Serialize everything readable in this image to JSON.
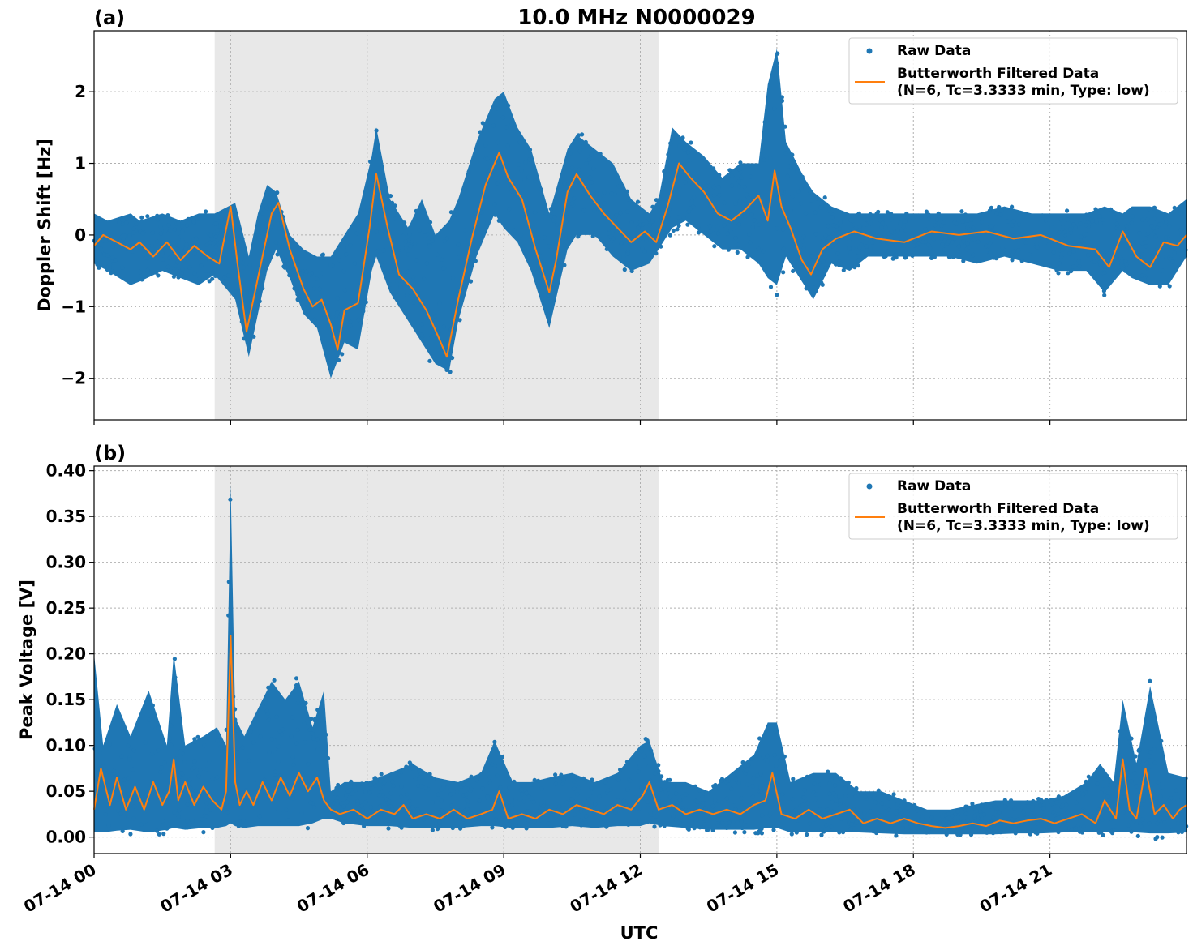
{
  "figure": {
    "title": "10.0 MHz N0000029",
    "xlabel": "UTC"
  },
  "colors": {
    "raw": "#1f77b4",
    "filtered": "#ff7f0e",
    "shade": "#e8e8e8",
    "grid": "#b0b0b0"
  },
  "chart_data": [
    {
      "type": "scatter",
      "panel_label": "(a)",
      "ylabel": "Doppler Shift [Hz]",
      "x_unit": "hours UTC on 07-14",
      "xlim": [
        0,
        24
      ],
      "ylim": [
        -2.58,
        2.85
      ],
      "xticks": [
        0,
        3,
        6,
        9,
        12,
        15,
        18,
        21
      ],
      "yticks": [
        -2,
        -1,
        0,
        1,
        2
      ],
      "ytick_labels": [
        "−2",
        "−1",
        "0",
        "1",
        "2"
      ],
      "shaded_x": [
        2.65,
        12.4
      ],
      "grid": true,
      "legend_position": "top-right",
      "legend": [
        "Raw Data",
        "Butterworth Filtered Data",
        "(N=6, Tc=3.3333 min, Type: low)"
      ],
      "series": [
        {
          "name": "Raw Data",
          "style": "band",
          "x": [
            0,
            0.3,
            0.8,
            1.0,
            1.5,
            1.9,
            2.3,
            2.65,
            3.1,
            3.4,
            3.6,
            3.8,
            4.0,
            4.3,
            4.6,
            4.9,
            5.2,
            5.5,
            5.8,
            6.1,
            6.2,
            6.5,
            6.9,
            7.2,
            7.5,
            7.8,
            8.0,
            8.4,
            8.8,
            9.0,
            9.3,
            9.6,
            10.0,
            10.4,
            10.6,
            11.0,
            11.4,
            11.8,
            12.2,
            12.4,
            12.7,
            13.0,
            13.4,
            13.8,
            14.2,
            14.6,
            14.8,
            15.0,
            15.2,
            15.6,
            15.8,
            16.2,
            16.6,
            17.0,
            17.6,
            18.2,
            18.8,
            19.4,
            20.0,
            20.6,
            21.2,
            21.8,
            22.2,
            22.6,
            22.8,
            23.2,
            23.6,
            24.0
          ],
          "lo": [
            -0.4,
            -0.5,
            -0.7,
            -0.65,
            -0.5,
            -0.6,
            -0.7,
            -0.55,
            -0.9,
            -1.7,
            -1.1,
            -0.5,
            -0.2,
            -0.6,
            -1.1,
            -1.3,
            -2.0,
            -1.5,
            -1.6,
            -0.5,
            -0.3,
            -0.8,
            -1.2,
            -1.5,
            -1.8,
            -1.9,
            -1.2,
            -0.3,
            0.3,
            0.1,
            -0.1,
            -0.5,
            -1.3,
            -0.2,
            0.0,
            0.0,
            -0.3,
            -0.5,
            -0.4,
            -0.2,
            0.1,
            0.2,
            0.0,
            -0.2,
            -0.2,
            -0.4,
            -0.6,
            -0.7,
            -0.3,
            -0.7,
            -0.9,
            -0.4,
            -0.5,
            -0.3,
            -0.3,
            -0.3,
            -0.3,
            -0.4,
            -0.3,
            -0.4,
            -0.5,
            -0.5,
            -0.8,
            -0.5,
            -0.6,
            -0.7,
            -0.7,
            -0.3
          ],
          "hi": [
            0.3,
            0.2,
            0.3,
            0.2,
            0.3,
            0.2,
            0.3,
            0.3,
            0.45,
            -0.3,
            0.3,
            0.7,
            0.6,
            0.0,
            -0.2,
            -0.3,
            -0.3,
            0.0,
            0.3,
            1.1,
            1.5,
            0.5,
            0.1,
            0.5,
            0.0,
            0.2,
            0.5,
            1.3,
            1.9,
            2.0,
            1.5,
            1.2,
            0.3,
            1.2,
            1.4,
            1.2,
            1.0,
            0.5,
            0.3,
            0.5,
            1.5,
            1.3,
            1.1,
            0.8,
            1.0,
            1.0,
            2.1,
            2.6,
            1.3,
            0.8,
            0.6,
            0.4,
            0.3,
            0.3,
            0.3,
            0.3,
            0.3,
            0.3,
            0.4,
            0.3,
            0.3,
            0.3,
            0.4,
            0.3,
            0.4,
            0.4,
            0.3,
            0.5
          ]
        },
        {
          "name": "Butterworth Filtered Data",
          "style": "line",
          "x": [
            0,
            0.2,
            0.5,
            0.8,
            1.0,
            1.3,
            1.6,
            1.9,
            2.2,
            2.5,
            2.75,
            3.0,
            3.15,
            3.35,
            3.6,
            3.9,
            4.05,
            4.3,
            4.6,
            4.8,
            5.0,
            5.2,
            5.35,
            5.5,
            5.8,
            6.05,
            6.2,
            6.45,
            6.7,
            7.0,
            7.3,
            7.55,
            7.75,
            8.0,
            8.3,
            8.6,
            8.9,
            9.1,
            9.4,
            9.7,
            10.0,
            10.15,
            10.4,
            10.6,
            10.9,
            11.2,
            11.5,
            11.8,
            12.1,
            12.35,
            12.6,
            12.85,
            13.1,
            13.4,
            13.7,
            14.0,
            14.3,
            14.6,
            14.8,
            14.95,
            15.1,
            15.3,
            15.55,
            15.75,
            16.0,
            16.3,
            16.7,
            17.2,
            17.8,
            18.4,
            19.0,
            19.6,
            20.2,
            20.8,
            21.4,
            22.0,
            22.3,
            22.6,
            22.9,
            23.2,
            23.5,
            23.8,
            24.0
          ],
          "y": [
            -0.15,
            0.0,
            -0.1,
            -0.2,
            -0.1,
            -0.3,
            -0.1,
            -0.35,
            -0.15,
            -0.3,
            -0.4,
            0.4,
            -0.4,
            -1.35,
            -0.6,
            0.3,
            0.45,
            -0.2,
            -0.75,
            -1.0,
            -0.9,
            -1.25,
            -1.6,
            -1.05,
            -0.95,
            0.1,
            0.85,
            0.1,
            -0.55,
            -0.75,
            -1.05,
            -1.4,
            -1.7,
            -0.9,
            -0.05,
            0.7,
            1.15,
            0.8,
            0.5,
            -0.2,
            -0.8,
            -0.35,
            0.6,
            0.85,
            0.55,
            0.3,
            0.1,
            -0.1,
            0.05,
            -0.1,
            0.4,
            1.0,
            0.8,
            0.6,
            0.3,
            0.2,
            0.35,
            0.55,
            0.2,
            0.9,
            0.4,
            0.1,
            -0.35,
            -0.55,
            -0.2,
            -0.05,
            0.05,
            -0.05,
            -0.1,
            0.05,
            0.0,
            0.05,
            -0.05,
            0.0,
            -0.15,
            -0.2,
            -0.45,
            0.05,
            -0.3,
            -0.45,
            -0.1,
            -0.15,
            0.0
          ]
        }
      ]
    },
    {
      "type": "scatter",
      "panel_label": "(b)",
      "ylabel": "Peak Voltage [V]",
      "x_unit": "hours UTC on 07-14",
      "xlim": [
        0,
        24
      ],
      "ylim": [
        -0.018,
        0.405
      ],
      "xticks": [
        0,
        3,
        6,
        9,
        12,
        15,
        18,
        21
      ],
      "yticks": [
        0.0,
        0.05,
        0.1,
        0.15,
        0.2,
        0.25,
        0.3,
        0.35,
        0.4
      ],
      "ytick_labels": [
        "0.00",
        "0.05",
        "0.10",
        "0.15",
        "0.20",
        "0.25",
        "0.30",
        "0.35",
        "0.40"
      ],
      "shaded_x": [
        2.65,
        12.4
      ],
      "grid": true,
      "legend_position": "top-right",
      "legend": [
        "Raw Data",
        "Butterworth Filtered Data",
        "(N=6, Tc=3.3333 min, Type: low)"
      ],
      "series": [
        {
          "name": "Raw Data",
          "style": "band",
          "x": [
            0,
            0.2,
            0.5,
            0.8,
            1.2,
            1.6,
            1.75,
            2.0,
            2.4,
            2.7,
            2.9,
            3.0,
            3.1,
            3.3,
            3.6,
            3.9,
            4.2,
            4.5,
            4.8,
            5.05,
            5.2,
            5.5,
            6.0,
            6.5,
            7.0,
            7.5,
            8.0,
            8.5,
            8.8,
            9.2,
            9.6,
            10.0,
            10.5,
            11.0,
            11.5,
            12.0,
            12.2,
            12.5,
            13.0,
            13.5,
            14.0,
            14.5,
            14.8,
            15.0,
            15.3,
            15.8,
            16.3,
            16.8,
            17.3,
            17.8,
            18.3,
            18.8,
            19.3,
            19.8,
            20.3,
            20.8,
            21.3,
            21.8,
            22.1,
            22.4,
            22.6,
            22.9,
            23.2,
            23.6,
            24.0
          ],
          "lo": [
            0.005,
            0.005,
            0.007,
            0.008,
            0.005,
            0.008,
            0.01,
            0.008,
            0.01,
            0.01,
            0.012,
            0.015,
            0.012,
            0.01,
            0.012,
            0.012,
            0.012,
            0.012,
            0.015,
            0.02,
            0.02,
            0.015,
            0.012,
            0.012,
            0.01,
            0.01,
            0.01,
            0.012,
            0.012,
            0.01,
            0.01,
            0.01,
            0.012,
            0.01,
            0.012,
            0.012,
            0.015,
            0.012,
            0.01,
            0.008,
            0.008,
            0.008,
            0.01,
            0.01,
            0.005,
            0.005,
            0.005,
            0.005,
            0.004,
            0.003,
            0.003,
            0.003,
            0.003,
            0.003,
            0.004,
            0.004,
            0.005,
            0.005,
            0.005,
            0.005,
            0.005,
            0.005,
            0.004,
            0.004,
            0.005
          ],
          "hi": [
            0.2,
            0.1,
            0.145,
            0.11,
            0.16,
            0.1,
            0.2,
            0.1,
            0.11,
            0.12,
            0.1,
            0.385,
            0.13,
            0.11,
            0.14,
            0.17,
            0.15,
            0.17,
            0.12,
            0.16,
            0.05,
            0.06,
            0.06,
            0.07,
            0.08,
            0.065,
            0.06,
            0.07,
            0.105,
            0.06,
            0.06,
            0.065,
            0.07,
            0.06,
            0.07,
            0.1,
            0.105,
            0.06,
            0.06,
            0.05,
            0.07,
            0.09,
            0.125,
            0.125,
            0.06,
            0.07,
            0.07,
            0.05,
            0.05,
            0.04,
            0.03,
            0.03,
            0.035,
            0.04,
            0.04,
            0.04,
            0.045,
            0.06,
            0.08,
            0.06,
            0.15,
            0.08,
            0.165,
            0.07,
            0.065
          ]
        },
        {
          "name": "Butterworth Filtered Data",
          "style": "line",
          "x": [
            0,
            0.15,
            0.35,
            0.5,
            0.7,
            0.9,
            1.1,
            1.3,
            1.5,
            1.65,
            1.75,
            1.85,
            2.0,
            2.2,
            2.4,
            2.6,
            2.8,
            2.9,
            3.0,
            3.1,
            3.2,
            3.35,
            3.5,
            3.7,
            3.9,
            4.1,
            4.3,
            4.5,
            4.7,
            4.9,
            5.05,
            5.2,
            5.4,
            5.7,
            6.0,
            6.3,
            6.6,
            6.8,
            7.0,
            7.3,
            7.6,
            7.9,
            8.2,
            8.5,
            8.75,
            8.9,
            9.1,
            9.4,
            9.7,
            10.0,
            10.3,
            10.6,
            10.9,
            11.2,
            11.5,
            11.8,
            12.05,
            12.2,
            12.4,
            12.7,
            13.0,
            13.3,
            13.6,
            13.9,
            14.2,
            14.5,
            14.75,
            14.9,
            15.1,
            15.4,
            15.7,
            16.0,
            16.3,
            16.6,
            16.9,
            17.2,
            17.5,
            17.8,
            18.1,
            18.4,
            18.7,
            19.0,
            19.3,
            19.6,
            19.9,
            20.2,
            20.5,
            20.8,
            21.1,
            21.4,
            21.7,
            22.0,
            22.2,
            22.45,
            22.6,
            22.75,
            22.9,
            23.1,
            23.3,
            23.5,
            23.7,
            23.85,
            24.0
          ],
          "y": [
            0.03,
            0.075,
            0.035,
            0.065,
            0.03,
            0.055,
            0.03,
            0.06,
            0.035,
            0.05,
            0.085,
            0.04,
            0.06,
            0.035,
            0.055,
            0.04,
            0.03,
            0.05,
            0.22,
            0.06,
            0.035,
            0.05,
            0.035,
            0.06,
            0.04,
            0.065,
            0.045,
            0.07,
            0.05,
            0.065,
            0.04,
            0.03,
            0.025,
            0.03,
            0.02,
            0.03,
            0.025,
            0.035,
            0.02,
            0.025,
            0.02,
            0.03,
            0.02,
            0.025,
            0.03,
            0.05,
            0.02,
            0.025,
            0.02,
            0.03,
            0.025,
            0.035,
            0.03,
            0.025,
            0.035,
            0.03,
            0.045,
            0.06,
            0.03,
            0.035,
            0.025,
            0.03,
            0.025,
            0.03,
            0.025,
            0.035,
            0.04,
            0.07,
            0.025,
            0.02,
            0.03,
            0.02,
            0.025,
            0.03,
            0.015,
            0.02,
            0.015,
            0.02,
            0.015,
            0.012,
            0.01,
            0.012,
            0.015,
            0.012,
            0.018,
            0.015,
            0.018,
            0.02,
            0.015,
            0.02,
            0.025,
            0.015,
            0.04,
            0.02,
            0.085,
            0.03,
            0.02,
            0.075,
            0.025,
            0.035,
            0.02,
            0.03,
            0.035
          ]
        }
      ]
    }
  ]
}
